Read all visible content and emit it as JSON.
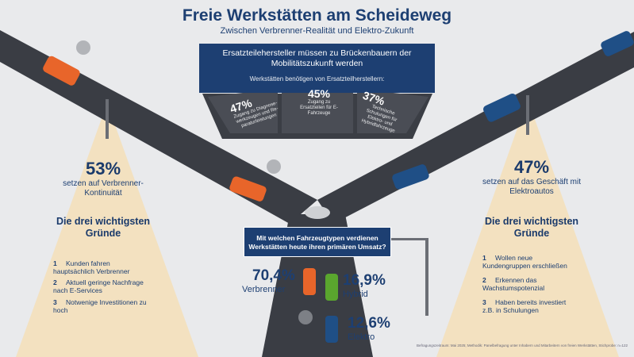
{
  "title": "Freie Werkstätten am Scheideweg",
  "subtitle": "Zwischen Verbrenner-Realität und Elektro-Zukunft",
  "bridge": {
    "headline": "Ersatzteilehersteller müssen zu Brückenbauern der Mobilitätszukunft werden",
    "subline": "Werkstätten benötigen von Ersatzteilherstellern:",
    "cards": [
      {
        "value": "47%",
        "text": "Zugang zu Diagnose-werkzeugen und Re-paraturleistungen"
      },
      {
        "value": "45%",
        "text": "Zugang zu Ersatzteilen für E-Fahrzeuge"
      },
      {
        "value": "37%",
        "text": "Technische Schulungen für Elektro- und Hybridfahrzeuge"
      }
    ]
  },
  "left": {
    "value": "53%",
    "text": "setzen auf Verbrenner-Kontinuität",
    "reasons_title": "Die drei wichtigsten Gründe",
    "reasons": [
      {
        "n": "1",
        "text": "Kunden fahren hauptsächlich Verbrenner"
      },
      {
        "n": "2",
        "text": "Aktuell geringe Nachfrage nach E-Services"
      },
      {
        "n": "3",
        "text": "Notwenige Investitionen zu hoch"
      }
    ]
  },
  "right": {
    "value": "47%",
    "text": "setzen auf das Geschäft mit Elektroautos",
    "reasons_title": "Die drei wichtigsten Gründe",
    "reasons": [
      {
        "n": "1",
        "text": "Wollen neue Kundengruppen erschließen"
      },
      {
        "n": "2",
        "text": "Erkennen das Wachstumspotenzial"
      },
      {
        "n": "3",
        "text": "Haben bereits investiert z.B. in Schulungen"
      }
    ]
  },
  "question": "Mit welchen Fahrzeugtypen verdienen Werkstätten heute ihren primären Umsatz?",
  "revenue": [
    {
      "value": "70,4%",
      "label": "Verbrenner"
    },
    {
      "value": "16,9%",
      "label": "Hybrid"
    },
    {
      "value": "12,6%",
      "label": "Elektro"
    }
  ],
  "footnote": "Befragungszeitraum: Mai 2025; Methodik: Panelbefragung unter Inhabern und Mitarbeitern von freien Werkstätten, Stichprobe: n=122",
  "colors": {
    "navy": "#1d3f72",
    "road": "#3a3d44",
    "car_orange": "#e8652a",
    "car_blue": "#1f4f86",
    "light": "#f4dfb8"
  }
}
